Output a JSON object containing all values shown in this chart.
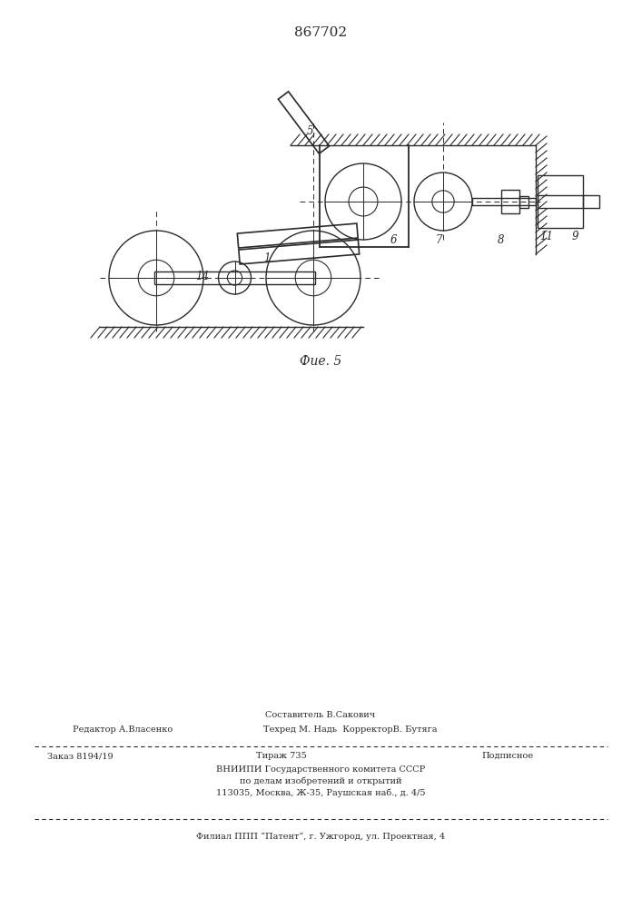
{
  "patent_number": "867702",
  "background_color": "#ffffff",
  "line_color": "#2a2a2a",
  "fig_caption": "Фие. 5",
  "footer": {
    "line1_center": "Составитель В.Сакович",
    "line2_left": "Редактор А.Власенко",
    "line2_right": "Техред М. Надь  КорректорВ. Бутяга",
    "order": "Заказ 8194/19",
    "tirazh": "Тираж 735",
    "podpisnoe": "Подписное",
    "vniipи": "ВНИИПИ Государственного комитета СССР",
    "dela": "по делам изобретений и открытий",
    "address": "113035, Москва, Ж-35, Раушская наб., д. 4/5",
    "filial": "Филиал ППП “Патент”, г. Ужгород, ул. Проектная, 4"
  }
}
